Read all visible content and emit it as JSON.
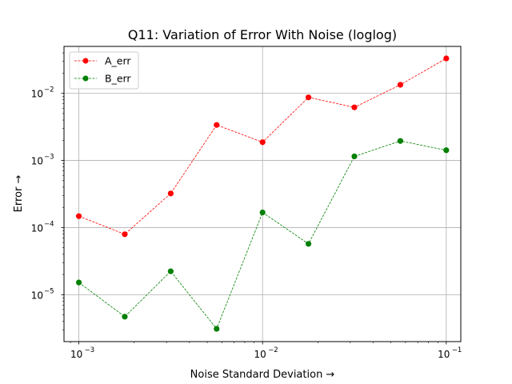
{
  "chart_data": {
    "type": "line",
    "title": "Q11: Variation of Error With Noise (loglog)",
    "xlabel": "Noise Standard Deviation  →",
    "ylabel": "Error  →",
    "xscale": "log",
    "yscale": "log",
    "xlim": [
      0.00083,
      0.12
    ],
    "ylim": [
      2e-06,
      0.05
    ],
    "x": [
      0.001,
      0.001778,
      0.003162,
      0.005623,
      0.01,
      0.01778,
      0.03162,
      0.05623,
      0.1
    ],
    "series": [
      {
        "name": "A_err",
        "color": "#ff0000",
        "values": [
          0.000148,
          7.95e-05,
          0.000322,
          0.00338,
          0.00187,
          0.0087,
          0.00618,
          0.0134,
          0.0331
        ]
      },
      {
        "name": "B_err",
        "color": "#008000",
        "values": [
          1.52e-05,
          4.7e-06,
          2.23e-05,
          3.1e-06,
          0.000168,
          5.72e-05,
          0.00115,
          0.00195,
          0.00142
        ]
      }
    ],
    "xticks": [
      {
        "value": 0.001,
        "base": "10",
        "exp": "−3"
      },
      {
        "value": 0.01,
        "base": "10",
        "exp": "−2"
      },
      {
        "value": 0.1,
        "base": "10",
        "exp": "−1"
      }
    ],
    "yticks": [
      {
        "value": 1e-05,
        "base": "10",
        "exp": "−5"
      },
      {
        "value": 0.0001,
        "base": "10",
        "exp": "−4"
      },
      {
        "value": 0.001,
        "base": "10",
        "exp": "−3"
      },
      {
        "value": 0.01,
        "base": "10",
        "exp": "−2"
      }
    ],
    "grid": true,
    "legend": "top-left"
  }
}
